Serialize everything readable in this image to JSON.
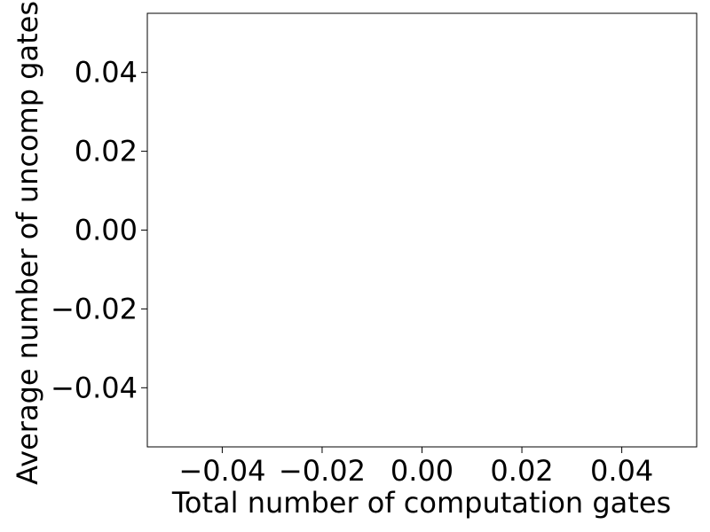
{
  "chart_data": {
    "type": "scatter",
    "title": "",
    "xlabel": "Total number of computation gates",
    "ylabel": "Average number of uncomp gates a",
    "xlim": [
      -0.055,
      0.055
    ],
    "ylim": [
      -0.055,
      0.055
    ],
    "x_ticks": [
      {
        "value": -0.04,
        "label": "−0.04"
      },
      {
        "value": -0.02,
        "label": "−0.02"
      },
      {
        "value": 0.0,
        "label": "0.00"
      },
      {
        "value": 0.02,
        "label": "0.02"
      },
      {
        "value": 0.04,
        "label": "0.04"
      }
    ],
    "y_ticks": [
      {
        "value": 0.04,
        "label": "0.04"
      },
      {
        "value": 0.02,
        "label": "0.02"
      },
      {
        "value": 0.0,
        "label": "0.00"
      },
      {
        "value": -0.02,
        "label": "−0.02"
      },
      {
        "value": -0.04,
        "label": "−0.04"
      }
    ],
    "series": [],
    "grid": false,
    "legend": "none",
    "colors": {
      "axes": "#000000",
      "background": "#ffffff"
    }
  }
}
